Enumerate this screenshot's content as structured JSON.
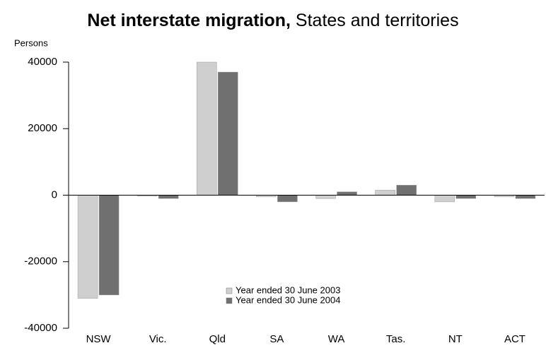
{
  "chart_data": {
    "type": "bar",
    "title": "Net interstate migration,",
    "subtitle": "States and territories",
    "ylabel": "Persons",
    "categories": [
      "NSW",
      "Vic.",
      "Qld",
      "SA",
      "WA",
      "Tas.",
      "NT",
      "ACT"
    ],
    "series": [
      {
        "name": "Year ended 30 June 2003",
        "color": "#cfcfcf",
        "values": [
          -31000,
          -300,
          40000,
          -500,
          -1000,
          1500,
          -2000,
          -500
        ]
      },
      {
        "name": "Year ended 30 June 2004",
        "color": "#707070",
        "values": [
          -30000,
          -1000,
          37000,
          -2000,
          1000,
          3000,
          -1000,
          -1000
        ]
      }
    ],
    "ylim": [
      -40000,
      40000
    ],
    "yticks": [
      40000,
      20000,
      0,
      -20000,
      -40000
    ]
  }
}
